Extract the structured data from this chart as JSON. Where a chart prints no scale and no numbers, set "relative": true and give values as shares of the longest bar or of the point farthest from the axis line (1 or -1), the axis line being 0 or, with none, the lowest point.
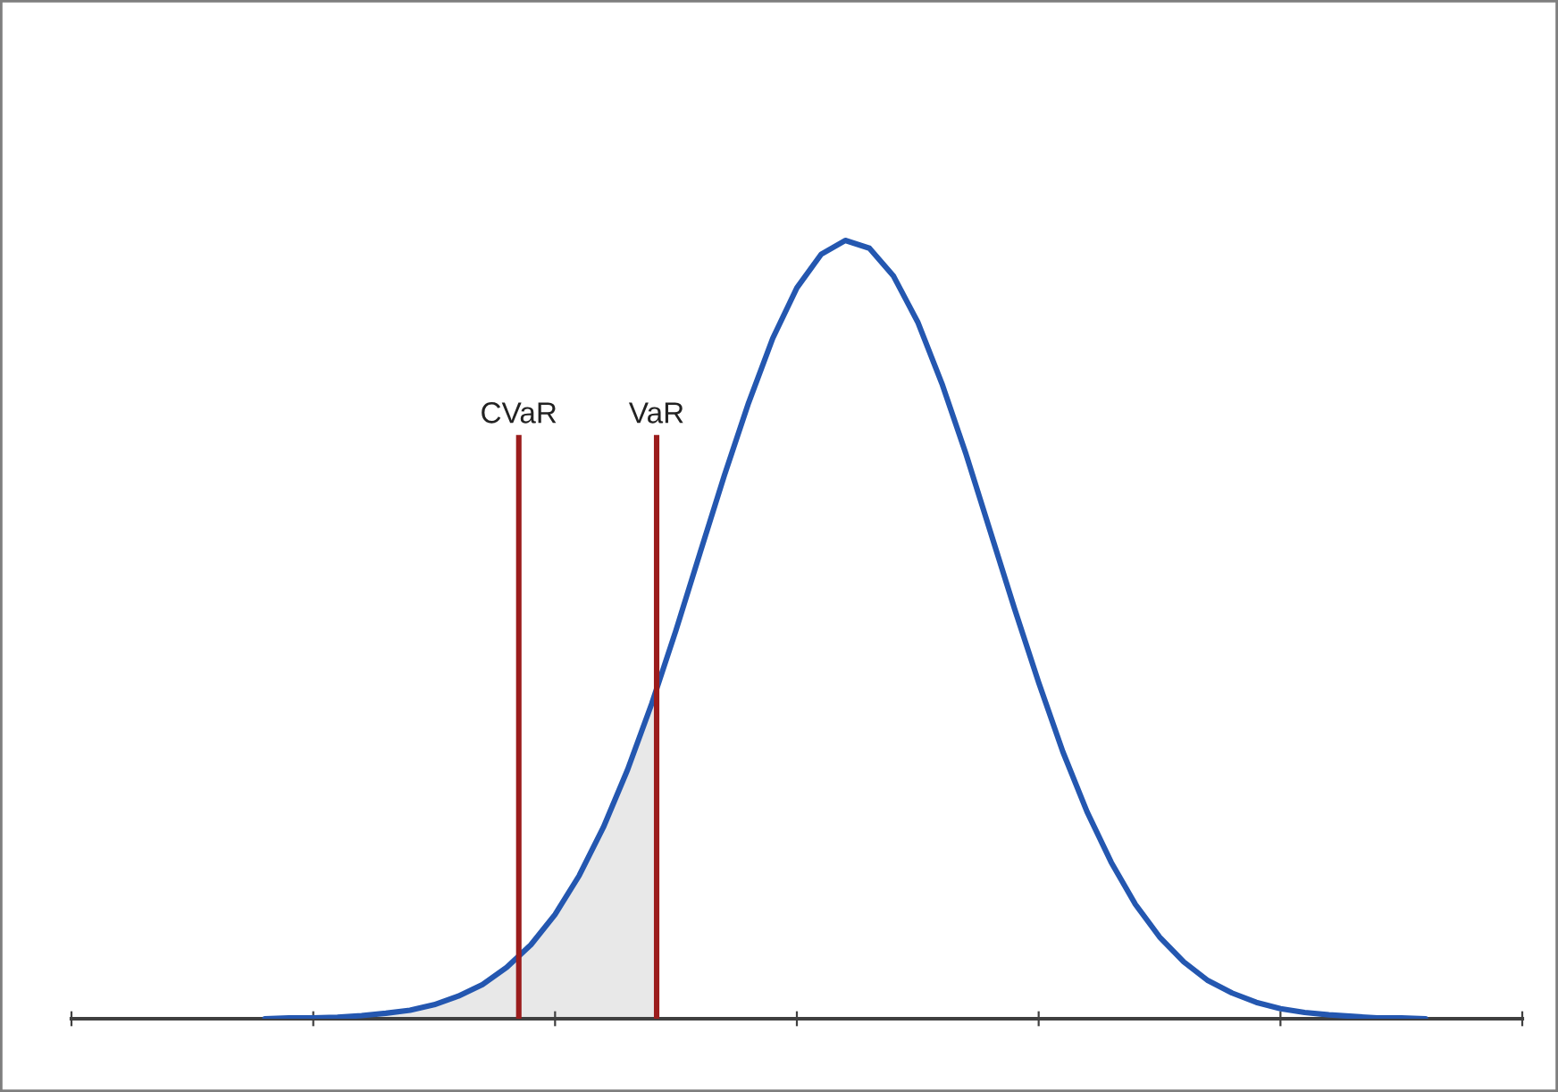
{
  "chart_data": {
    "type": "line",
    "relative": true,
    "categories": [
      null,
      null,
      null,
      null,
      null,
      null,
      null,
      null,
      null,
      null,
      null,
      null,
      null,
      null,
      null,
      null,
      null,
      null,
      null,
      null,
      null,
      null,
      null,
      null,
      null,
      null,
      null,
      null,
      null,
      null,
      null,
      null,
      null,
      null,
      null,
      null,
      null,
      null,
      null,
      null,
      null,
      null,
      null,
      null,
      null,
      null,
      null,
      null,
      null
    ],
    "series": [
      {
        "color": "#2457b0",
        "values": [
          0.0,
          0.001,
          0.001,
          0.002,
          0.004,
          0.007,
          0.011,
          0.018,
          0.029,
          0.044,
          0.066,
          0.095,
          0.134,
          0.184,
          0.246,
          0.32,
          0.405,
          0.499,
          0.599,
          0.698,
          0.791,
          0.874,
          0.939,
          0.982,
          1.0,
          0.99,
          0.954,
          0.895,
          0.816,
          0.725,
          0.626,
          0.527,
          0.432,
          0.343,
          0.266,
          0.201,
          0.147,
          0.105,
          0.073,
          0.049,
          0.033,
          0.021,
          0.013,
          0.008,
          0.005,
          0.003,
          0.001,
          0.001,
          0.0
        ]
      }
    ],
    "annotations": [
      "CVaR",
      "VaR"
    ],
    "grid": false,
    "legend": false
  }
}
